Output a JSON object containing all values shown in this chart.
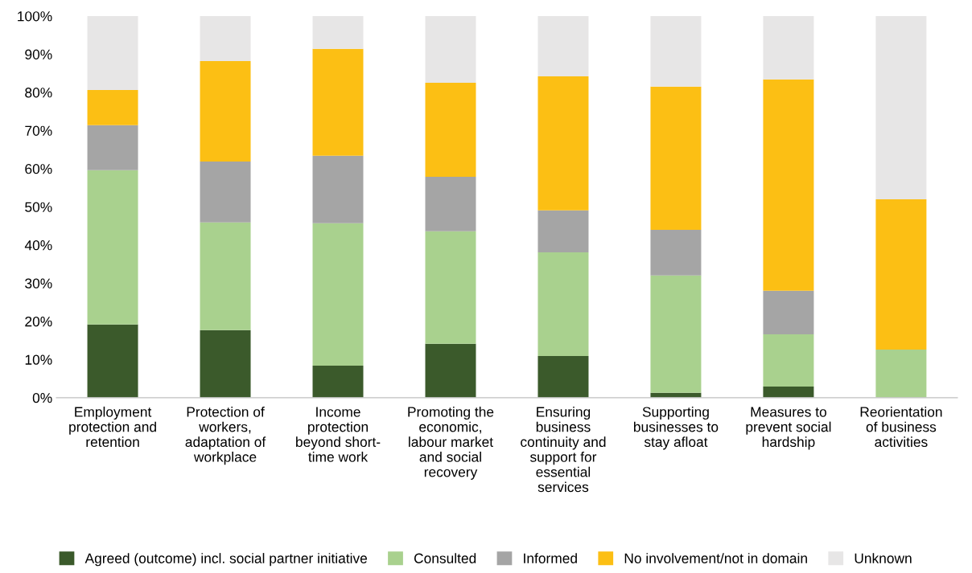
{
  "chart_data": {
    "type": "bar",
    "stacked": true,
    "categories": [
      "Employment\nprotection and\nretention",
      "Protection of\nworkers,\nadaptation of\nworkplace",
      "Income\nprotection\nbeyond short-\ntime work",
      "Promoting the\neconomic,\nlabour market\nand social\nrecovery",
      "Ensuring\nbusiness\ncontinuity and\nsupport for\nessential\nservices",
      "Supporting\nbusinesses to\nstay afloat",
      "Measures to\nprevent social\nhardship",
      "Reorientation\nof business\nactivities"
    ],
    "series": [
      {
        "name": "Agreed (outcome) incl. social partner initiative",
        "color": "#3b5a2b",
        "values": [
          19.2,
          17.7,
          8.4,
          14.1,
          10.9,
          1.3,
          2.9,
          0
        ]
      },
      {
        "name": "Consulted",
        "color": "#a9d18e",
        "values": [
          40.4,
          28.2,
          37.3,
          29.5,
          27.2,
          30.7,
          13.7,
          12.6
        ]
      },
      {
        "name": "Informed",
        "color": "#a5a5a5",
        "values": [
          11.8,
          16.0,
          17.7,
          14.3,
          11.0,
          12.0,
          11.4,
          0
        ]
      },
      {
        "name": "No involvement/not in domain",
        "color": "#fcbf14",
        "values": [
          9.2,
          26.3,
          28.0,
          24.6,
          35.1,
          37.5,
          55.4,
          39.4
        ]
      },
      {
        "name": "Unknown",
        "color": "#e7e6e6",
        "values": [
          19.4,
          11.8,
          8.6,
          17.5,
          15.8,
          18.5,
          16.6,
          48.0
        ]
      }
    ],
    "ylim": [
      0,
      100
    ],
    "yticks": [
      {
        "value": 0,
        "label": "0%"
      },
      {
        "value": 10,
        "label": "10%"
      },
      {
        "value": 20,
        "label": "20%"
      },
      {
        "value": 30,
        "label": "30%"
      },
      {
        "value": 40,
        "label": "40%"
      },
      {
        "value": 50,
        "label": "50%"
      },
      {
        "value": 60,
        "label": "60%"
      },
      {
        "value": 70,
        "label": "70%"
      },
      {
        "value": 80,
        "label": "80%"
      },
      {
        "value": 90,
        "label": "90%"
      },
      {
        "value": 100,
        "label": "100%"
      }
    ],
    "legend": "bottom",
    "grid": false
  }
}
